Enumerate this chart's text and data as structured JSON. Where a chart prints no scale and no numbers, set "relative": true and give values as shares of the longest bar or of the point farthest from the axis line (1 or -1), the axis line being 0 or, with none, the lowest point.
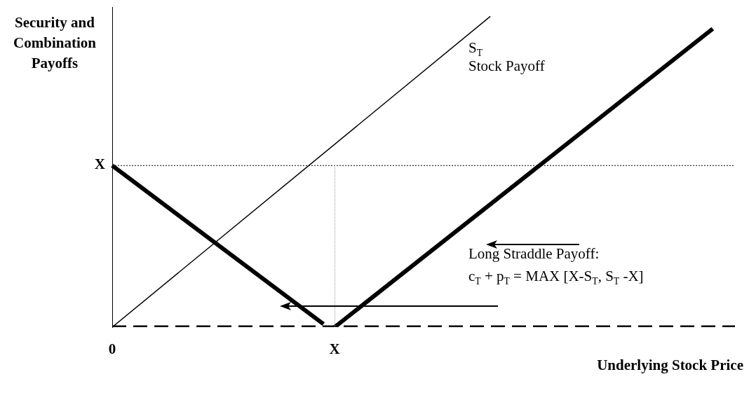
{
  "chart_data": {
    "type": "line",
    "xlabel": "Underlying Stock Price",
    "ylabel": "Security and Combination Payoffs",
    "relative": true,
    "categories": [
      "0",
      null,
      null,
      null,
      null,
      null,
      null,
      null,
      null,
      null,
      null,
      null,
      null,
      null,
      null,
      null,
      null,
      null,
      null,
      null,
      "X",
      null,
      null,
      null,
      null,
      null,
      null,
      null,
      null,
      null,
      null,
      null,
      null,
      null,
      null,
      null,
      null,
      null,
      null,
      null,
      null,
      null,
      null,
      null,
      null,
      null,
      null,
      null,
      null,
      null,
      null,
      null,
      null,
      null,
      null,
      null,
      null
    ],
    "series": [
      {
        "values": [
          0,
          null,
          null,
          null,
          null,
          null,
          null,
          null,
          null,
          null,
          null,
          null,
          null,
          null,
          null,
          null,
          null,
          null,
          null,
          null,
          null,
          null,
          null,
          null,
          null,
          null,
          null,
          null,
          null,
          null,
          null,
          null,
          null,
          null,
          1,
          null,
          null,
          null,
          null,
          null,
          null,
          null,
          null,
          null,
          null,
          null,
          null,
          null,
          null,
          null,
          null,
          null,
          null,
          null,
          null,
          null,
          null
        ],
        "color": "#000000",
        "line_style": "solid"
      },
      {
        "values": [
          0.52,
          null,
          null,
          null,
          null,
          null,
          null,
          null,
          null,
          null,
          null,
          null,
          null,
          null,
          null,
          null,
          null,
          null,
          null,
          0.01,
          null,
          null,
          null,
          null,
          null,
          null,
          null,
          null,
          null,
          null,
          null,
          null,
          null,
          null,
          null,
          null,
          null,
          null,
          null,
          null,
          null,
          null,
          null,
          null,
          null,
          null,
          null,
          null,
          null,
          null,
          null,
          null,
          null,
          null,
          null,
          null,
          null
        ],
        "color": "#000000",
        "line_style": "solid"
      },
      {
        "values": [
          null,
          null,
          null,
          null,
          null,
          null,
          null,
          null,
          null,
          null,
          null,
          null,
          null,
          null,
          null,
          null,
          null,
          null,
          null,
          null,
          0,
          null,
          null,
          null,
          null,
          null,
          null,
          null,
          null,
          null,
          null,
          null,
          null,
          null,
          null,
          null,
          null,
          null,
          null,
          null,
          null,
          null,
          null,
          null,
          null,
          null,
          null,
          null,
          null,
          null,
          null,
          null,
          null,
          null,
          0.96,
          null,
          null
        ],
        "color": "#000000",
        "line_style": "solid"
      },
      {
        "values": [
          0,
          null,
          null,
          null,
          null,
          null,
          null,
          null,
          null,
          null,
          null,
          null,
          null,
          null,
          null,
          null,
          null,
          null,
          null,
          null,
          null,
          null,
          null,
          null,
          null,
          null,
          null,
          null,
          null,
          null,
          null,
          null,
          null,
          null,
          null,
          null,
          null,
          null,
          null,
          null,
          null,
          null,
          null,
          null,
          null,
          null,
          null,
          null,
          null,
          null,
          null,
          null,
          null,
          null,
          null,
          null,
          0
        ],
        "color": "#000000",
        "line_style": "dashed"
      }
    ],
    "ref_lines": [
      {
        "axis": "y",
        "value": 0.52,
        "color": "#000000",
        "line_style": "dotted"
      }
    ],
    "annotations": [
      "X",
      "S$_{T}$",
      "Stock Payoff",
      "Long Straddle Payoff:",
      "c$_{T}$ + p$_{T}$ = MAX [X-S$_{T}$, S$_{T}$ -X]"
    ]
  }
}
